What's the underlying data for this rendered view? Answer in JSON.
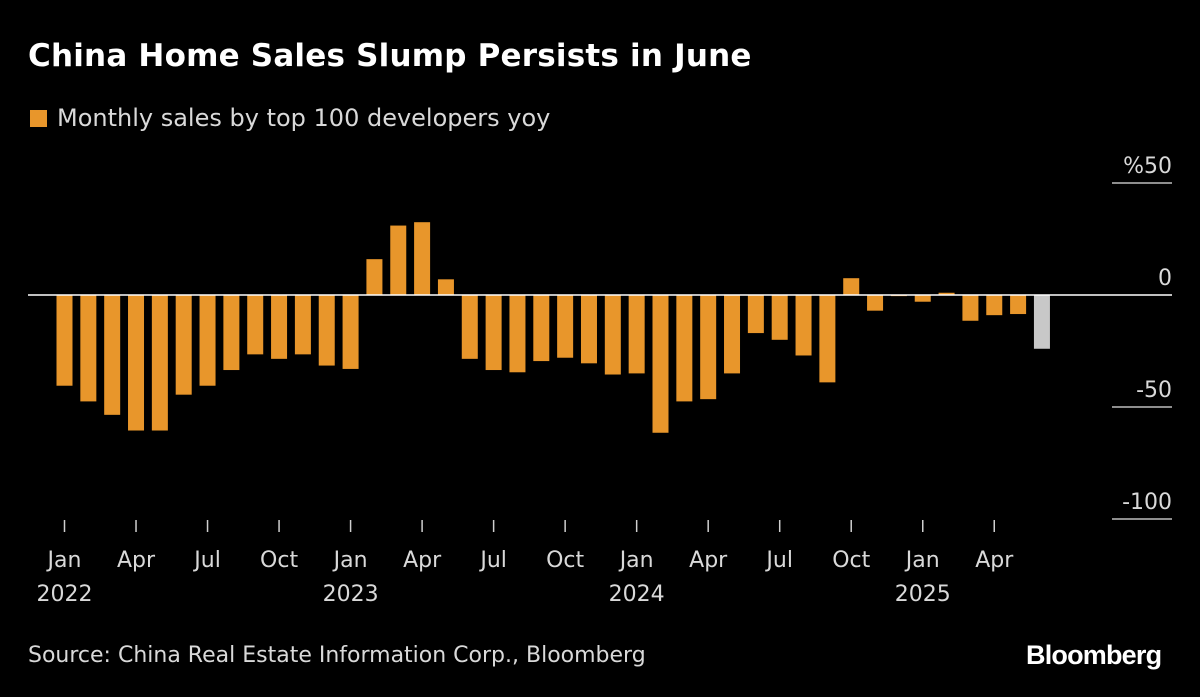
{
  "title": "China Home Sales Slump Persists in June",
  "legend": {
    "label": "Monthly sales by top 100 developers yoy",
    "color": "#e8962b"
  },
  "source": "Source: China Real Estate Information Corp., Bloomberg",
  "brand": "Bloomberg",
  "colors": {
    "bar": "#e8962b",
    "highlight": "#c8c8c8",
    "axis": "#ffffff",
    "text": "#d9d9d9"
  },
  "chart_data": {
    "type": "bar",
    "title": "China Home Sales Slump Persists in June",
    "unit": "%",
    "y_axis_position": "right",
    "ylim": [
      -100,
      50
    ],
    "y_ticks": [
      {
        "value": 50,
        "label": "%50"
      },
      {
        "value": 0,
        "label": "0"
      },
      {
        "value": -50,
        "label": "-50"
      },
      {
        "value": -100,
        "label": "-100"
      }
    ],
    "x_tick_labels": [
      {
        "index": 0,
        "month": "Jan",
        "year": "2022"
      },
      {
        "index": 3,
        "month": "Apr",
        "year": ""
      },
      {
        "index": 6,
        "month": "Jul",
        "year": ""
      },
      {
        "index": 9,
        "month": "Oct",
        "year": ""
      },
      {
        "index": 12,
        "month": "Jan",
        "year": "2023"
      },
      {
        "index": 15,
        "month": "Apr",
        "year": ""
      },
      {
        "index": 18,
        "month": "Jul",
        "year": ""
      },
      {
        "index": 21,
        "month": "Oct",
        "year": ""
      },
      {
        "index": 24,
        "month": "Jan",
        "year": "2024"
      },
      {
        "index": 27,
        "month": "Apr",
        "year": ""
      },
      {
        "index": 30,
        "month": "Jul",
        "year": ""
      },
      {
        "index": 33,
        "month": "Oct",
        "year": ""
      },
      {
        "index": 36,
        "month": "Jan",
        "year": "2025"
      },
      {
        "index": 39,
        "month": "Apr",
        "year": ""
      }
    ],
    "categories": [
      "2022-01",
      "2022-02",
      "2022-03",
      "2022-04",
      "2022-05",
      "2022-06",
      "2022-07",
      "2022-08",
      "2022-09",
      "2022-10",
      "2022-11",
      "2022-12",
      "2023-01",
      "2023-02",
      "2023-03",
      "2023-04",
      "2023-05",
      "2023-06",
      "2023-07",
      "2023-08",
      "2023-09",
      "2023-10",
      "2023-11",
      "2023-12",
      "2024-01",
      "2024-02",
      "2024-03",
      "2024-04",
      "2024-05",
      "2024-06",
      "2024-07",
      "2024-08",
      "2024-09",
      "2024-10",
      "2024-11",
      "2024-12",
      "2025-01",
      "2025-02",
      "2025-03",
      "2025-04",
      "2025-05",
      "2025-06"
    ],
    "series": [
      {
        "values": [
          -40.5,
          -47.5,
          -53.5,
          -60.5,
          -60.5,
          -44.5,
          -40.5,
          -33.5,
          -26.5,
          -28.5,
          -26.5,
          -31.5,
          -33,
          16,
          31,
          32.5,
          7,
          -28.5,
          -33.5,
          -34.5,
          -29.5,
          -28,
          -30.5,
          -35.5,
          -35,
          -61.5,
          -47.5,
          -46.5,
          -35,
          -17,
          -20,
          -27,
          -39,
          7.5,
          -7,
          -0.5,
          -3,
          1,
          -11.5,
          -9,
          -8.5,
          -24
        ],
        "highlight_last": true
      }
    ]
  }
}
